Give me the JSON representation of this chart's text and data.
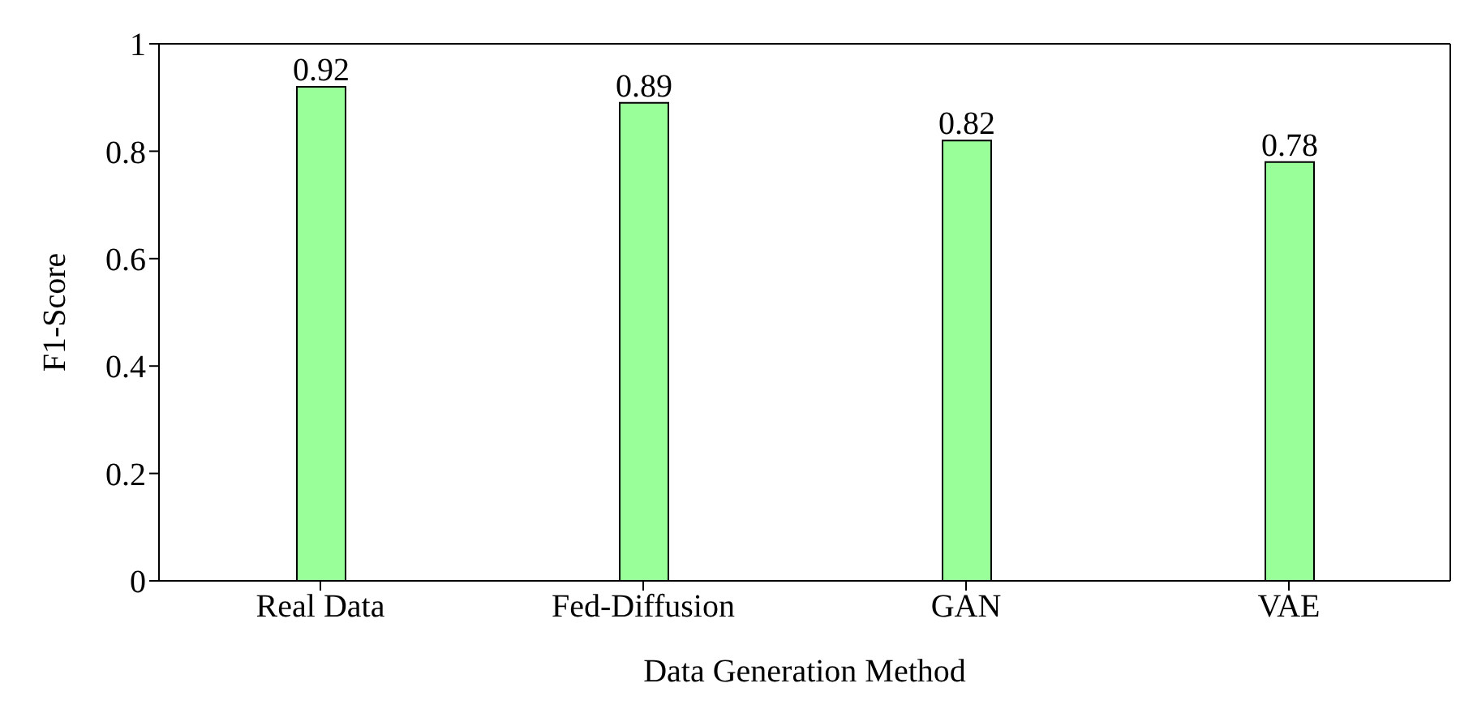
{
  "chart_data": {
    "type": "bar",
    "xlabel": "Data Generation Method",
    "ylabel": "F1-Score",
    "categories": [
      "Real Data",
      "Fed-Diffusion",
      "GAN",
      "VAE"
    ],
    "values": [
      0.92,
      0.89,
      0.82,
      0.78
    ],
    "color": "#99ff99",
    "ylim": [
      0,
      1
    ],
    "yticks": [
      0,
      0.2,
      0.4,
      0.6,
      0.8,
      1
    ],
    "data_labels": true
  }
}
